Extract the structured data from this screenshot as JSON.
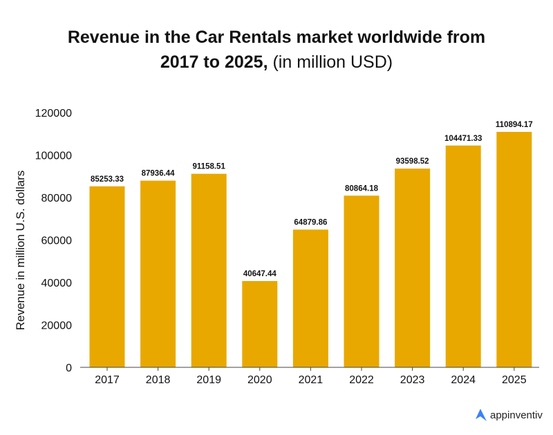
{
  "chart_data": {
    "type": "bar",
    "title_line1": "Revenue in the Car Rentals market worldwide from",
    "title_line2_bold": "2017 to 2025,",
    "title_line2_normal": " (in million USD)",
    "xlabel": "",
    "ylabel": "Revenue in million U.S. dollars",
    "ylim": [
      0,
      120000
    ],
    "yticks": [
      0,
      20000,
      40000,
      60000,
      80000,
      100000,
      120000
    ],
    "categories": [
      "2017",
      "2018",
      "2019",
      "2020",
      "2021",
      "2022",
      "2023",
      "2024",
      "2025"
    ],
    "values": [
      85253.33,
      87936.44,
      91158.51,
      40647.44,
      64879.86,
      80864.18,
      93598.52,
      104471.33,
      110894.17
    ],
    "data_labels": [
      "85253.33",
      "87936.44",
      "91158.51",
      "40647.44",
      "64879.86",
      "80864.18",
      "93598.52",
      "104471.33",
      "110894.17"
    ],
    "bar_color": "#E8A800",
    "grid": false,
    "legend": "none"
  },
  "brand": {
    "name": "appinventiv",
    "color": "#3B82F6"
  }
}
